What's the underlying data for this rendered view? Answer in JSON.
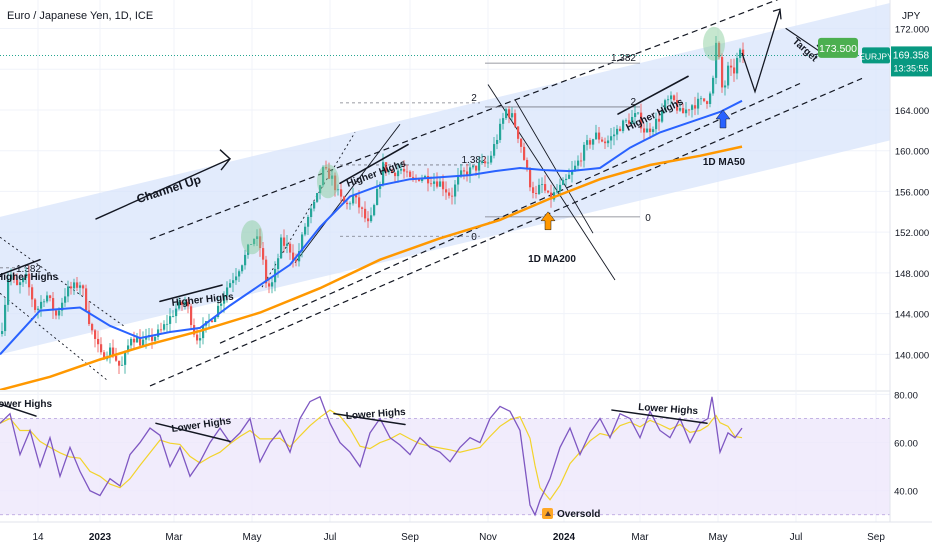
{
  "header": {
    "symbol_title": "Euro / Japanese Yen, 1D, ICE"
  },
  "currency_label": "JPY",
  "chart_data": [
    {
      "type": "candlestick",
      "title": "Euro / Japanese Yen, 1D, ICE",
      "ylim": [
        136.5,
        174.8
      ],
      "y_ticks": [
        140.0,
        144.0,
        148.0,
        152.0,
        156.0,
        160.0,
        164.0,
        168.0,
        172.0
      ],
      "y_tick_labels": [
        "140.000",
        "144.000",
        "148.000",
        "152.000",
        "156.000",
        "160.000",
        "164.000",
        "168.000",
        "172.000"
      ],
      "x_ticks": [
        "14",
        "2023",
        "Mar",
        "May",
        "Jul",
        "Sep",
        "Nov",
        "2024",
        "Mar",
        "May",
        "Jul",
        "Sep"
      ],
      "bold_x_ticks": [
        "2023",
        "2024"
      ],
      "price_path": [
        [
          0,
          142.0
        ],
        [
          8,
          148.3
        ],
        [
          15,
          146.5
        ],
        [
          25,
          147.5
        ],
        [
          35,
          144.2
        ],
        [
          45,
          146.0
        ],
        [
          55,
          143.8
        ],
        [
          65,
          146.2
        ],
        [
          80,
          147.0
        ],
        [
          90,
          142.5
        ],
        [
          100,
          139.8
        ],
        [
          110,
          140.5
        ],
        [
          120,
          138.5
        ],
        [
          130,
          141.8
        ],
        [
          140,
          141.2
        ],
        [
          150,
          141.5
        ],
        [
          160,
          142.3
        ],
        [
          175,
          144.5
        ],
        [
          185,
          145.2
        ],
        [
          195,
          141.5
        ],
        [
          205,
          142.8
        ],
        [
          215,
          144.2
        ],
        [
          225,
          146.5
        ],
        [
          235,
          148.0
        ],
        [
          245,
          149.8
        ],
        [
          252,
          151.5
        ],
        [
          258,
          151.0
        ],
        [
          262,
          149.0
        ],
        [
          266,
          146.5
        ],
        [
          272,
          147.0
        ],
        [
          280,
          151.0
        ],
        [
          288,
          150.5
        ],
        [
          295,
          149.0
        ],
        [
          305,
          153.0
        ],
        [
          315,
          155.0
        ],
        [
          322,
          158.0
        ],
        [
          330,
          157.5
        ],
        [
          338,
          155.5
        ],
        [
          345,
          154.5
        ],
        [
          352,
          155.5
        ],
        [
          360,
          154.2
        ],
        [
          368,
          152.5
        ],
        [
          372,
          154.0
        ],
        [
          382,
          158.5
        ],
        [
          390,
          157.8
        ],
        [
          400,
          158.2
        ],
        [
          410,
          157.0
        ],
        [
          420,
          157.5
        ],
        [
          430,
          157.2
        ],
        [
          440,
          156.8
        ],
        [
          450,
          155.5
        ],
        [
          458,
          157.5
        ],
        [
          468,
          158.0
        ],
        [
          478,
          158.5
        ],
        [
          487,
          158.8
        ],
        [
          495,
          161.0
        ],
        [
          505,
          164.0
        ],
        [
          512,
          163.2
        ],
        [
          520,
          160.5
        ],
        [
          528,
          157.0
        ],
        [
          535,
          155.5
        ],
        [
          540,
          156.8
        ],
        [
          548,
          155.2
        ],
        [
          556,
          156.0
        ],
        [
          565,
          157.0
        ],
        [
          575,
          158.5
        ],
        [
          585,
          160.5
        ],
        [
          595,
          161.5
        ],
        [
          605,
          160.8
        ],
        [
          612,
          161.5
        ],
        [
          620,
          162.5
        ],
        [
          628,
          163.0
        ],
        [
          636,
          163.5
        ],
        [
          644,
          161.8
        ],
        [
          650,
          162.3
        ],
        [
          658,
          163.2
        ],
        [
          665,
          164.8
        ],
        [
          672,
          165.0
        ],
        [
          680,
          163.5
        ],
        [
          690,
          164.5
        ],
        [
          700,
          164.8
        ],
        [
          706,
          165.0
        ],
        [
          712,
          167.0
        ],
        [
          716,
          171.5
        ],
        [
          719,
          167.5
        ],
        [
          722,
          165.5
        ],
        [
          727,
          168.0
        ],
        [
          732,
          167.5
        ],
        [
          738,
          169.6
        ],
        [
          742,
          169.35
        ]
      ],
      "ma50": [
        [
          0,
          140.0
        ],
        [
          40,
          144.3
        ],
        [
          80,
          144.6
        ],
        [
          110,
          142.8
        ],
        [
          140,
          141.6
        ],
        [
          170,
          142.2
        ],
        [
          200,
          142.6
        ],
        [
          230,
          144.8
        ],
        [
          260,
          146.8
        ],
        [
          290,
          148.8
        ],
        [
          320,
          152.5
        ],
        [
          350,
          155.5
        ],
        [
          380,
          156.6
        ],
        [
          410,
          157.2
        ],
        [
          440,
          157.4
        ],
        [
          470,
          157.6
        ],
        [
          495,
          158.0
        ],
        [
          520,
          158.3
        ],
        [
          545,
          158.1
        ],
        [
          570,
          158.0
        ],
        [
          600,
          158.3
        ],
        [
          630,
          160.3
        ],
        [
          660,
          161.8
        ],
        [
          690,
          162.8
        ],
        [
          720,
          163.8
        ],
        [
          742,
          164.9
        ]
      ],
      "ma200": [
        [
          0,
          136.5
        ],
        [
          50,
          137.8
        ],
        [
          100,
          139.5
        ],
        [
          150,
          141.0
        ],
        [
          200,
          142.3
        ],
        [
          260,
          144.1
        ],
        [
          320,
          146.5
        ],
        [
          380,
          149.3
        ],
        [
          440,
          151.4
        ],
        [
          500,
          153.2
        ],
        [
          550,
          155.3
        ],
        [
          600,
          157.2
        ],
        [
          650,
          158.6
        ],
        [
          700,
          159.5
        ],
        [
          742,
          160.4
        ]
      ],
      "channel": {
        "lower": [
          [
            0,
            140.0
          ],
          [
            932,
            162.0
          ]
        ],
        "upper": [
          [
            0,
            153.5
          ],
          [
            932,
            175.5
          ]
        ],
        "dashed_upper": [
          [
            150,
            151.3
          ],
          [
            790,
            175.3
          ]
        ],
        "dashed_lower": [
          [
            150,
            136.9
          ],
          [
            862,
            167.1
          ]
        ],
        "dashed_short": [
          [
            220,
            141.1
          ],
          [
            800,
            166.6
          ]
        ]
      },
      "fibonacci": [
        {
          "lines": [
            {
              "label": "2",
              "y": 164.7
            },
            {
              "label": "1.382",
              "y": 158.6
            },
            {
              "label": "0",
              "y": 151.6
            }
          ],
          "x_range": [
            340,
            480
          ]
        },
        {
          "lines": [
            {
              "label": "1.382",
              "y": 168.6
            },
            {
              "label": "2",
              "y": 164.3
            },
            {
              "label": "0",
              "y": 153.5
            }
          ],
          "x_range": [
            485,
            640
          ]
        }
      ],
      "fib_left_label": "1.382",
      "price_marker": {
        "value": 169.358,
        "value_label": "169.358",
        "symbol": "EURJPY",
        "countdown": "13:35:55"
      },
      "target_label": "173.500",
      "annotations": [
        {
          "text": "Channel Up"
        },
        {
          "text": "Higher Highs"
        },
        {
          "text": "Higher Highs"
        },
        {
          "text": "Higher Highs"
        },
        {
          "text": "Higher Highs"
        },
        {
          "text": "Target"
        },
        {
          "text": "1D MA50"
        },
        {
          "text": "1D MA200"
        }
      ]
    },
    {
      "type": "line",
      "ylim": [
        27,
        81
      ],
      "y_ticks": [
        40.0,
        60.0,
        80.0
      ],
      "y_tick_labels": [
        "40.00",
        "60.00",
        "80.00"
      ],
      "band": [
        30,
        70
      ],
      "rsi": [
        [
          0,
          68
        ],
        [
          10,
          72
        ],
        [
          20,
          55
        ],
        [
          30,
          65
        ],
        [
          40,
          50
        ],
        [
          50,
          62
        ],
        [
          60,
          46
        ],
        [
          70,
          58
        ],
        [
          80,
          48
        ],
        [
          90,
          40
        ],
        [
          100,
          38
        ],
        [
          110,
          45
        ],
        [
          120,
          42
        ],
        [
          130,
          55
        ],
        [
          140,
          60
        ],
        [
          150,
          66
        ],
        [
          160,
          63
        ],
        [
          170,
          50
        ],
        [
          180,
          58
        ],
        [
          190,
          46
        ],
        [
          200,
          52
        ],
        [
          210,
          60
        ],
        [
          220,
          66
        ],
        [
          230,
          60
        ],
        [
          240,
          64
        ],
        [
          250,
          70
        ],
        [
          260,
          52
        ],
        [
          270,
          60
        ],
        [
          280,
          65
        ],
        [
          290,
          56
        ],
        [
          300,
          70
        ],
        [
          310,
          77
        ],
        [
          320,
          79
        ],
        [
          330,
          68
        ],
        [
          340,
          60
        ],
        [
          350,
          56
        ],
        [
          360,
          50
        ],
        [
          370,
          64
        ],
        [
          380,
          70
        ],
        [
          390,
          62
        ],
        [
          400,
          59
        ],
        [
          410,
          55
        ],
        [
          420,
          62
        ],
        [
          430,
          58
        ],
        [
          440,
          56
        ],
        [
          450,
          52
        ],
        [
          460,
          58
        ],
        [
          470,
          62
        ],
        [
          480,
          60
        ],
        [
          490,
          70
        ],
        [
          500,
          75
        ],
        [
          510,
          73
        ],
        [
          520,
          65
        ],
        [
          530,
          34
        ],
        [
          535,
          30
        ],
        [
          540,
          36
        ],
        [
          550,
          45
        ],
        [
          560,
          58
        ],
        [
          570,
          66
        ],
        [
          580,
          55
        ],
        [
          590,
          64
        ],
        [
          600,
          70
        ],
        [
          610,
          62
        ],
        [
          620,
          72
        ],
        [
          630,
          70
        ],
        [
          640,
          62
        ],
        [
          650,
          73
        ],
        [
          660,
          65
        ],
        [
          670,
          62
        ],
        [
          680,
          70
        ],
        [
          690,
          60
        ],
        [
          700,
          68
        ],
        [
          708,
          70
        ],
        [
          712,
          79
        ],
        [
          716,
          68
        ],
        [
          720,
          56
        ],
        [
          728,
          64
        ],
        [
          735,
          62
        ],
        [
          742,
          66
        ]
      ],
      "annotations": [
        {
          "text": "Lower Highs"
        },
        {
          "text": "Lower Highs"
        },
        {
          "text": "Lower Highs"
        },
        {
          "text": "Lower Highs"
        },
        {
          "text": "Oversold"
        }
      ]
    }
  ],
  "colors": {
    "channel_fill": "#d6e2fb",
    "rsi_band": "#ede7fb",
    "candle_up": "#26a69a",
    "candle_down": "#ef5350",
    "ma50": "#2962ff",
    "ma200": "#ff9800",
    "rsi": "#7e57c2",
    "rsi_ma": "#ffeb3b",
    "target_badge": "#4caf50",
    "price_badge": "#089981"
  }
}
